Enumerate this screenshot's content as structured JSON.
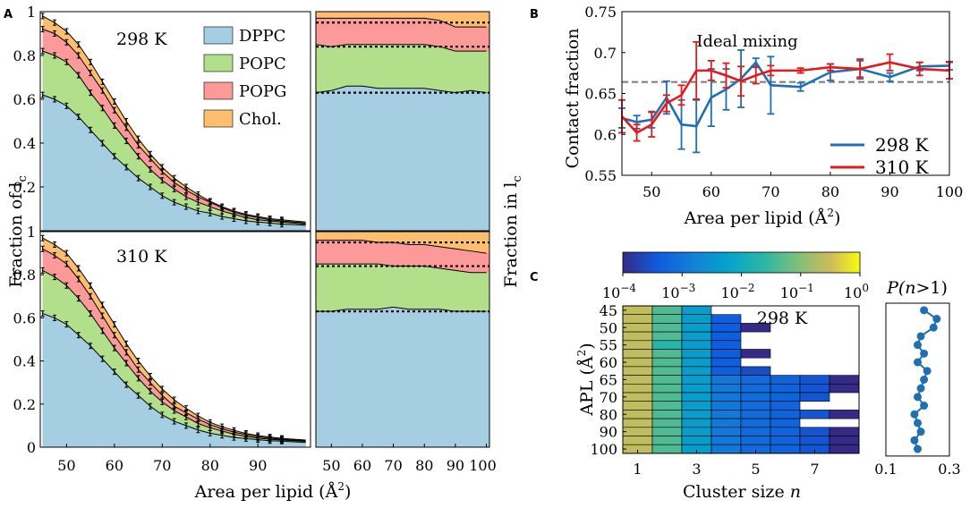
{
  "panel_labels": {
    "a": "A",
    "b": "B",
    "c": "C"
  },
  "chart_data": [
    {
      "panel": "A",
      "type": "area",
      "ylabel": "Fraction of l",
      "ylabel_sub": "c",
      "right_ylabel": "Fraction in l",
      "right_ylabel_sub": "c",
      "xlabel": "Area per lipid (Å",
      "xlabel_sup": "2",
      "xlabel_close": ")",
      "xlim": [
        44.5,
        101
      ],
      "ylim": [
        0,
        1
      ],
      "left_xticks": [
        "50",
        "60",
        "70",
        "80",
        "90"
      ],
      "right_xticks": [
        "50",
        "60",
        "70",
        "80",
        "90",
        "100"
      ],
      "yticks": [
        "0",
        "0.2",
        "0.4",
        "0.6",
        "0.8",
        "1"
      ],
      "colors": {
        "DPPC": "#a6cee3",
        "POPC": "#b2df8a",
        "POPG": "#fb9a99",
        "Chol": "#fdbf6f"
      },
      "legend": [
        "DPPC",
        "POPC",
        "POPG",
        "Chol."
      ],
      "top": {
        "temperature": "298 K",
        "x": [
          45,
          47.5,
          50,
          52.5,
          55,
          57.5,
          60,
          62.5,
          65,
          67.5,
          70,
          72.5,
          75,
          77.5,
          80,
          82.5,
          85,
          87.5,
          90,
          92.5,
          95,
          97.5,
          100
        ],
        "cum_DPPC": [
          0.62,
          0.6,
          0.57,
          0.52,
          0.46,
          0.4,
          0.34,
          0.29,
          0.24,
          0.2,
          0.16,
          0.13,
          0.11,
          0.09,
          0.08,
          0.065,
          0.055,
          0.045,
          0.04,
          0.035,
          0.03,
          0.028,
          0.025
        ],
        "cum_POPC": [
          0.82,
          0.8,
          0.77,
          0.71,
          0.63,
          0.56,
          0.48,
          0.41,
          0.34,
          0.28,
          0.23,
          0.19,
          0.155,
          0.13,
          0.11,
          0.09,
          0.075,
          0.06,
          0.05,
          0.045,
          0.04,
          0.035,
          0.03
        ],
        "cum_POPG": [
          0.92,
          0.9,
          0.86,
          0.8,
          0.72,
          0.64,
          0.55,
          0.47,
          0.39,
          0.33,
          0.27,
          0.22,
          0.185,
          0.155,
          0.13,
          0.105,
          0.085,
          0.07,
          0.06,
          0.05,
          0.045,
          0.04,
          0.035
        ],
        "cum_Chol": [
          0.98,
          0.95,
          0.91,
          0.85,
          0.77,
          0.68,
          0.59,
          0.5,
          0.42,
          0.35,
          0.29,
          0.24,
          0.2,
          0.165,
          0.135,
          0.11,
          0.09,
          0.075,
          0.065,
          0.055,
          0.05,
          0.045,
          0.04
        ],
        "composition": {
          "x": [
            45,
            50,
            55,
            60,
            65,
            70,
            75,
            80,
            85,
            90,
            95,
            100
          ],
          "cum_DPPC": [
            0.63,
            0.64,
            0.66,
            0.66,
            0.65,
            0.65,
            0.65,
            0.65,
            0.64,
            0.63,
            0.64,
            0.63
          ],
          "cum_POPC": [
            0.85,
            0.84,
            0.85,
            0.85,
            0.85,
            0.85,
            0.85,
            0.85,
            0.84,
            0.82,
            0.82,
            0.82
          ],
          "cum_POPG": [
            0.97,
            0.97,
            0.97,
            0.97,
            0.97,
            0.97,
            0.97,
            0.97,
            0.96,
            0.93,
            0.93,
            0.93
          ],
          "ideal": [
            0.63,
            0.84,
            0.95
          ]
        }
      },
      "bottom": {
        "temperature": "310 K",
        "x": [
          45,
          47.5,
          50,
          52.5,
          55,
          57.5,
          60,
          62.5,
          65,
          67.5,
          70,
          72.5,
          75,
          77.5,
          80,
          82.5,
          85,
          87.5,
          90,
          92.5,
          95,
          97.5,
          100
        ],
        "cum_DPPC": [
          0.62,
          0.6,
          0.57,
          0.52,
          0.47,
          0.41,
          0.35,
          0.29,
          0.24,
          0.19,
          0.15,
          0.12,
          0.1,
          0.08,
          0.065,
          0.055,
          0.045,
          0.04,
          0.035,
          0.03,
          0.028,
          0.025,
          0.022
        ],
        "cum_POPC": [
          0.82,
          0.79,
          0.75,
          0.69,
          0.62,
          0.54,
          0.46,
          0.39,
          0.32,
          0.26,
          0.21,
          0.17,
          0.14,
          0.11,
          0.09,
          0.075,
          0.06,
          0.05,
          0.042,
          0.037,
          0.033,
          0.03,
          0.027
        ],
        "cum_POPG": [
          0.92,
          0.89,
          0.85,
          0.78,
          0.7,
          0.61,
          0.52,
          0.44,
          0.36,
          0.3,
          0.24,
          0.19,
          0.16,
          0.13,
          0.105,
          0.085,
          0.07,
          0.058,
          0.048,
          0.042,
          0.037,
          0.033,
          0.03
        ],
        "cum_Chol": [
          0.97,
          0.94,
          0.9,
          0.83,
          0.75,
          0.66,
          0.57,
          0.48,
          0.4,
          0.33,
          0.27,
          0.22,
          0.18,
          0.145,
          0.115,
          0.095,
          0.078,
          0.064,
          0.054,
          0.047,
          0.041,
          0.037,
          0.033
        ],
        "composition": {
          "x": [
            45,
            50,
            55,
            60,
            65,
            70,
            75,
            80,
            85,
            90,
            95,
            100
          ],
          "cum_DPPC": [
            0.63,
            0.63,
            0.64,
            0.64,
            0.64,
            0.65,
            0.64,
            0.64,
            0.64,
            0.63,
            0.63,
            0.63
          ],
          "cum_POPC": [
            0.85,
            0.85,
            0.85,
            0.85,
            0.85,
            0.84,
            0.84,
            0.84,
            0.83,
            0.82,
            0.81,
            0.81
          ],
          "cum_POPG": [
            0.96,
            0.96,
            0.96,
            0.96,
            0.95,
            0.95,
            0.94,
            0.94,
            0.93,
            0.92,
            0.91,
            0.9
          ],
          "ideal": [
            0.63,
            0.84,
            0.95
          ]
        }
      }
    },
    {
      "panel": "B",
      "type": "line",
      "ylabel": "Contact fraction",
      "xlabel": "Area per lipid (Å",
      "xlabel_sup": "2",
      "xlabel_close": ")",
      "xlim": [
        45,
        100
      ],
      "ylim": [
        0.55,
        0.75
      ],
      "xticks": [
        "50",
        "60",
        "70",
        "80",
        "90",
        "100"
      ],
      "yticks": [
        "0.55",
        "0.6",
        "0.65",
        "0.7",
        "0.75"
      ],
      "ideal_mixing": 0.664,
      "annotation": "Ideal mixing",
      "series": [
        {
          "name": "298 K",
          "color": "#1f6fb2",
          "x": [
            45,
            47.5,
            50,
            52.5,
            55,
            57.5,
            60,
            62.5,
            65,
            67.5,
            70,
            75,
            80,
            85,
            90,
            95,
            100
          ],
          "values": [
            0.62,
            0.615,
            0.618,
            0.645,
            0.612,
            0.61,
            0.645,
            0.655,
            0.668,
            0.688,
            0.66,
            0.658,
            0.676,
            0.68,
            0.67,
            0.683,
            0.684
          ],
          "errors": [
            0.012,
            0.008,
            0.01,
            0.02,
            0.03,
            0.032,
            0.035,
            0.025,
            0.035,
            0.005,
            0.035,
            0.005,
            0.01,
            0.01,
            0.005,
            0.005,
            0.005
          ]
        },
        {
          "name": "310 K",
          "color": "#e31a1c",
          "x": [
            45,
            47.5,
            50,
            52.5,
            55,
            57.5,
            60,
            62.5,
            65,
            67.5,
            70,
            75,
            80,
            85,
            90,
            95,
            100
          ],
          "values": [
            0.622,
            0.602,
            0.612,
            0.638,
            0.648,
            0.678,
            0.678,
            0.672,
            0.665,
            0.672,
            0.678,
            0.678,
            0.682,
            0.68,
            0.688,
            0.68,
            0.678
          ],
          "errors": [
            0.02,
            0.01,
            0.015,
            0.01,
            0.012,
            0.035,
            0.012,
            0.015,
            0.018,
            0.01,
            0.006,
            0.003,
            0.004,
            0.012,
            0.01,
            0.008,
            0.01
          ]
        }
      ]
    },
    {
      "panel": "C",
      "type": "heatmap",
      "temperature": "298 K",
      "ylabel": "APL (Å",
      "ylabel_sup": "2",
      "ylabel_close": ")",
      "xlabel": "Cluster size ",
      "xlabel_italic": "n",
      "xticks": [
        "1",
        "3",
        "5",
        "7"
      ],
      "yticks": [
        "45",
        "50",
        "55",
        "60",
        "65",
        "70",
        "80",
        "90",
        "100"
      ],
      "colorbar": {
        "scale": "log",
        "ticks": [
          "10",
          "10",
          "10",
          "10",
          "10"
        ],
        "exponents": [
          "−4",
          "−3",
          "−2",
          "−1",
          "0"
        ],
        "log_values": [
          -4,
          -3,
          -2,
          -1,
          0
        ]
      },
      "rows_apl": [
        45,
        47.5,
        50,
        52.5,
        55,
        57.5,
        60,
        62.5,
        65,
        67.5,
        70,
        75,
        80,
        85,
        90,
        95,
        100
      ],
      "log10_values": [
        [
          -0.7,
          -1.5,
          -2.4,
          null,
          null,
          null,
          null,
          null
        ],
        [
          -0.7,
          -1.5,
          -2.4,
          -3.4,
          null,
          null,
          null,
          null
        ],
        [
          -0.7,
          -1.5,
          -2.4,
          -3.4,
          -4.1,
          null,
          null,
          null
        ],
        [
          -0.7,
          -1.5,
          -2.4,
          -3.4,
          null,
          null,
          null,
          null
        ],
        [
          -0.7,
          -1.8,
          -2.4,
          -3.4,
          null,
          null,
          null,
          null
        ],
        [
          -0.7,
          -1.5,
          -2.4,
          -3.4,
          -4.1,
          null,
          null,
          null
        ],
        [
          -0.7,
          -1.5,
          -2.4,
          -3.4,
          null,
          null,
          null,
          null
        ],
        [
          -0.7,
          -1.5,
          -2.4,
          -3.4,
          -3.6,
          null,
          null,
          null
        ],
        [
          -0.7,
          -1.5,
          -2.4,
          -3.0,
          -3.2,
          -3.3,
          -3.5,
          -4.1
        ],
        [
          -0.7,
          -1.5,
          -2.4,
          -3.0,
          -3.2,
          -3.3,
          -3.5,
          -4.1
        ],
        [
          -0.7,
          -1.5,
          -2.4,
          -3.0,
          -3.2,
          -3.3,
          -3.5,
          null
        ],
        [
          -0.7,
          -1.5,
          -2.4,
          -3.0,
          -3.2,
          -3.3,
          null,
          null
        ],
        [
          -0.7,
          -1.5,
          -2.4,
          -3.0,
          -3.2,
          -3.3,
          -3.5,
          -4.1
        ],
        [
          -0.7,
          -1.5,
          -2.4,
          -3.0,
          -3.2,
          -3.3,
          null,
          null
        ],
        [
          -0.7,
          -1.5,
          -2.4,
          -3.0,
          -3.2,
          -3.3,
          -3.5,
          -4.1
        ],
        [
          -0.7,
          -1.5,
          -2.4,
          -3.0,
          -3.2,
          -3.3,
          -3.5,
          -4.1
        ],
        [
          -0.7,
          -1.5,
          -2.4,
          -3.0,
          -3.2,
          -3.3,
          -3.5,
          -4.1
        ]
      ],
      "side_plot": {
        "title_prefix": "P(",
        "title_var": "n",
        "title_rest": ">1)",
        "xlim": [
          0.1,
          0.3
        ],
        "xticks": [
          "0.1",
          "0.3"
        ],
        "values": [
          0.22,
          0.26,
          0.25,
          0.21,
          0.2,
          0.22,
          0.2,
          0.23,
          0.22,
          0.21,
          0.2,
          0.22,
          0.19,
          0.2,
          0.21,
          0.19,
          0.2
        ]
      }
    }
  ]
}
